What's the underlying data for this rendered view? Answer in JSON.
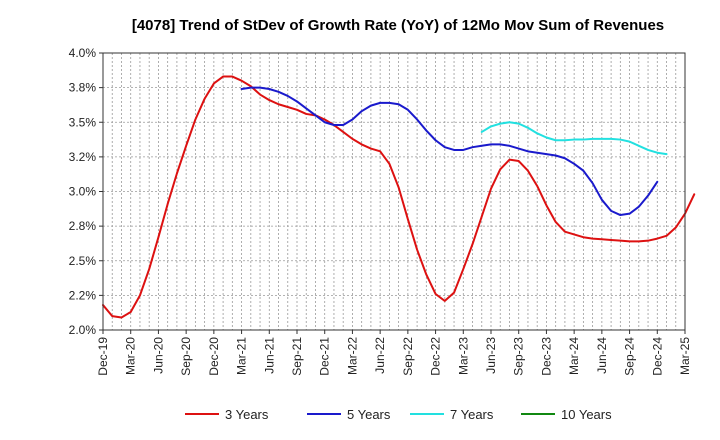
{
  "chart_data": {
    "type": "line",
    "title": "[4078]  Trend of StDev of Growth Rate (YoY) of 12Mo Mov Sum of Revenues",
    "xlabel": "",
    "ylabel": "",
    "ylim": [
      2.0,
      4.0
    ],
    "grid": true,
    "legend_position": "bottom",
    "x_ticks": [
      "Dec-19",
      "Mar-20",
      "Jun-20",
      "Sep-20",
      "Dec-20",
      "Mar-21",
      "Jun-21",
      "Sep-21",
      "Dec-21",
      "Mar-22",
      "Jun-22",
      "Sep-22",
      "Dec-22",
      "Mar-23",
      "Jun-23",
      "Sep-23",
      "Dec-23",
      "Mar-24",
      "Jun-24",
      "Sep-24",
      "Dec-24",
      "Mar-25"
    ],
    "y_ticks": [
      {
        "value": 2.0,
        "label": "2.0%"
      },
      {
        "value": 2.25,
        "label": "2.2%"
      },
      {
        "value": 2.5,
        "label": "2.5%"
      },
      {
        "value": 2.75,
        "label": "2.8%"
      },
      {
        "value": 3.0,
        "label": "3.0%"
      },
      {
        "value": 3.25,
        "label": "3.2%"
      },
      {
        "value": 3.5,
        "label": "3.5%"
      },
      {
        "value": 3.75,
        "label": "3.8%"
      },
      {
        "value": 4.0,
        "label": "4.0%"
      }
    ],
    "series": [
      {
        "name": "3 Years",
        "color": "#dd1111",
        "start_index": 0,
        "values": [
          2.18,
          2.1,
          2.09,
          2.13,
          2.25,
          2.44,
          2.67,
          2.91,
          3.13,
          3.33,
          3.52,
          3.67,
          3.78,
          3.83,
          3.83,
          3.8,
          3.76,
          3.7,
          3.66,
          3.63,
          3.61,
          3.59,
          3.56,
          3.55,
          3.52,
          3.48,
          3.43,
          3.38,
          3.34,
          3.31,
          3.29,
          3.2,
          3.03,
          2.8,
          2.58,
          2.4,
          2.26,
          2.21,
          2.27,
          2.44,
          2.62,
          2.82,
          3.02,
          3.16,
          3.23,
          3.22,
          3.15,
          3.04,
          2.9,
          2.78,
          2.71,
          2.69,
          2.67,
          2.66,
          2.655,
          2.65,
          2.645,
          2.64,
          2.64,
          2.645,
          2.66,
          2.68,
          2.74,
          2.84,
          2.98
        ]
      },
      {
        "name": "5 Years",
        "color": "#1a1acc",
        "start_index": 15,
        "values": [
          3.74,
          3.75,
          3.75,
          3.74,
          3.72,
          3.69,
          3.65,
          3.6,
          3.55,
          3.5,
          3.48,
          3.48,
          3.52,
          3.58,
          3.62,
          3.64,
          3.64,
          3.63,
          3.59,
          3.52,
          3.44,
          3.37,
          3.32,
          3.3,
          3.3,
          3.32,
          3.33,
          3.34,
          3.34,
          3.33,
          3.31,
          3.29,
          3.28,
          3.27,
          3.26,
          3.24,
          3.2,
          3.15,
          3.06,
          2.94,
          2.86,
          2.83,
          2.84,
          2.89,
          2.97,
          3.07
        ]
      },
      {
        "name": "7 Years",
        "color": "#22e0e0",
        "start_index": 41,
        "values": [
          3.43,
          3.47,
          3.49,
          3.5,
          3.49,
          3.46,
          3.42,
          3.39,
          3.37,
          3.37,
          3.375,
          3.375,
          3.38,
          3.38,
          3.38,
          3.375,
          3.36,
          3.33,
          3.3,
          3.28,
          3.27
        ]
      },
      {
        "name": "10 Years",
        "color": "#118811",
        "start_index": 0,
        "values": []
      }
    ]
  }
}
